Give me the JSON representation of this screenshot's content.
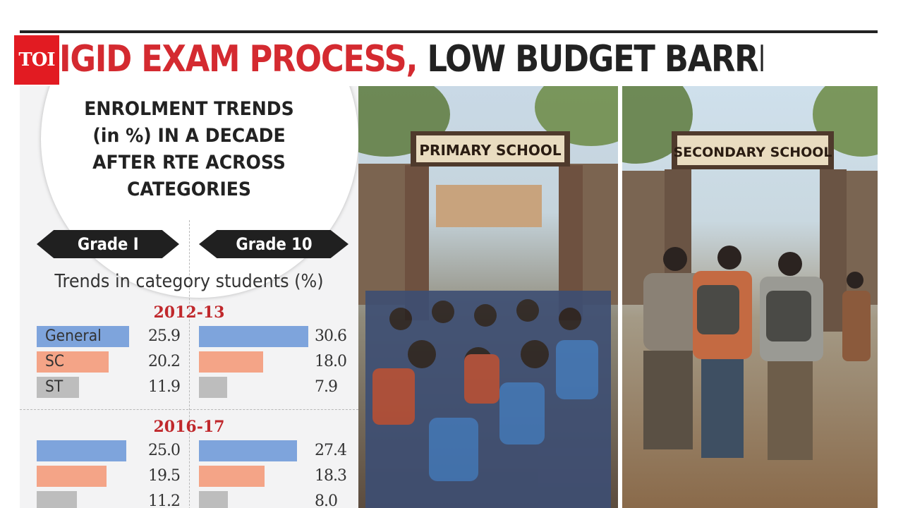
{
  "header": {
    "logo": "TOI",
    "headline_red": "IGID EXAM PROCESS,",
    "headline_dark": "LOW BUDGET BARRIER’"
  },
  "chart_title": "ENROLMENT TRENDS (in %) IN A DECADE AFTER RTE ACROSS CATEGORIES",
  "title_lines": [
    "ENROLMENT TRENDS",
    "(in %) IN A DECADE",
    "AFTER RTE ACROSS",
    "CATEGORIES"
  ],
  "trends_label": "Trends in category students (%)",
  "grade_labels": [
    "Grade I",
    "Grade 10"
  ],
  "category_labels": [
    "General",
    "SC",
    "ST"
  ],
  "colors": {
    "General": "#7ea4dc",
    "SC": "#f4a487",
    "ST": "#bdbdbd",
    "accent": "#d42a30",
    "logo_bg": "#e21b22"
  },
  "images": {
    "left_sign": "PRIMARY SCHOOL",
    "right_sign": "SECONDARY SCHOOL"
  },
  "chart_data": {
    "type": "bar",
    "orientation": "horizontal",
    "title": "ENROLMENT TRENDS (in %) IN A DECADE AFTER RTE ACROSS CATEGORIES",
    "subtitle": "Trends in category students (%)",
    "panels": [
      "Grade I",
      "Grade 10"
    ],
    "categories": [
      "General",
      "SC",
      "ST"
    ],
    "groups": [
      {
        "year": "2012-13",
        "series": [
          {
            "name": "Grade I",
            "values": [
              25.9,
              20.2,
              11.9
            ],
            "labels": [
              "25.9",
              "20.2",
              "11.9"
            ]
          },
          {
            "name": "Grade 10",
            "values": [
              30.6,
              18.0,
              7.9
            ],
            "labels": [
              "30.6",
              "18.0",
              "7.9"
            ]
          }
        ]
      },
      {
        "year": "2016-17",
        "series": [
          {
            "name": "Grade I",
            "values": [
              25.0,
              19.5,
              11.2
            ],
            "labels": [
              "25.0",
              "19.5",
              "11.2"
            ]
          },
          {
            "name": "Grade 10",
            "values": [
              27.4,
              18.3,
              8.0
            ],
            "labels": [
              "27.4",
              "18.3",
              "8.0"
            ]
          }
        ]
      }
    ],
    "xlim": [
      0,
      32
    ]
  }
}
